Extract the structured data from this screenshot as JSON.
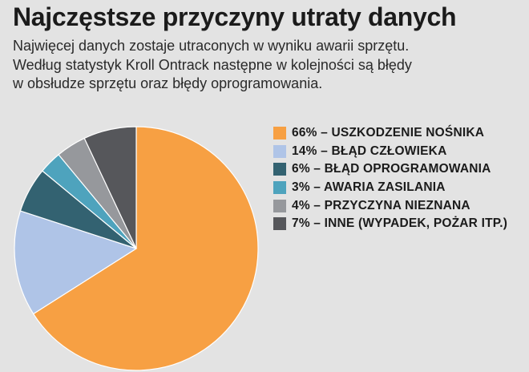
{
  "title": "Najczęstsze przyczyny utraty danych",
  "subtitle": {
    "line1": "Najwięcej danych zostaje utraconych w wyniku awarii sprzętu.",
    "line2": "Według statystyk Kroll Ontrack następne w kolejności są błędy",
    "line3": "w obsłudze sprzętu oraz błędy oprogramowania."
  },
  "chart_data": {
    "type": "pie",
    "legend_position": "right",
    "slices": [
      {
        "label": "66% – USZKODZENIE NOŚNIKA",
        "name": "USZKODZENIE NOŚNIKA",
        "value": 66,
        "color": "#f7a043"
      },
      {
        "label": "14% – BŁĄD CZŁOWIEKA",
        "name": "BŁĄD CZŁOWIEKA",
        "value": 14,
        "color": "#afc4e7"
      },
      {
        "label": "6% – BŁĄD OPROGRAMOWANIA",
        "name": "BŁĄD OPROGRAMOWANIA",
        "value": 6,
        "color": "#336271"
      },
      {
        "label": "3% – AWARIA ZASILANIA",
        "name": "AWARIA ZASILANIA",
        "value": 3,
        "color": "#4ea3bd"
      },
      {
        "label": "4% – PRZYCZYNA NIEZNANA",
        "name": "PRZYCZYNA NIEZNANA",
        "value": 4,
        "color": "#96989c"
      },
      {
        "label": "7% – INNE (WYPADEK, POŻAR ITP.)",
        "name": "INNE (WYPADEK, POŻAR ITP.)",
        "value": 7,
        "color": "#56575b"
      }
    ]
  }
}
